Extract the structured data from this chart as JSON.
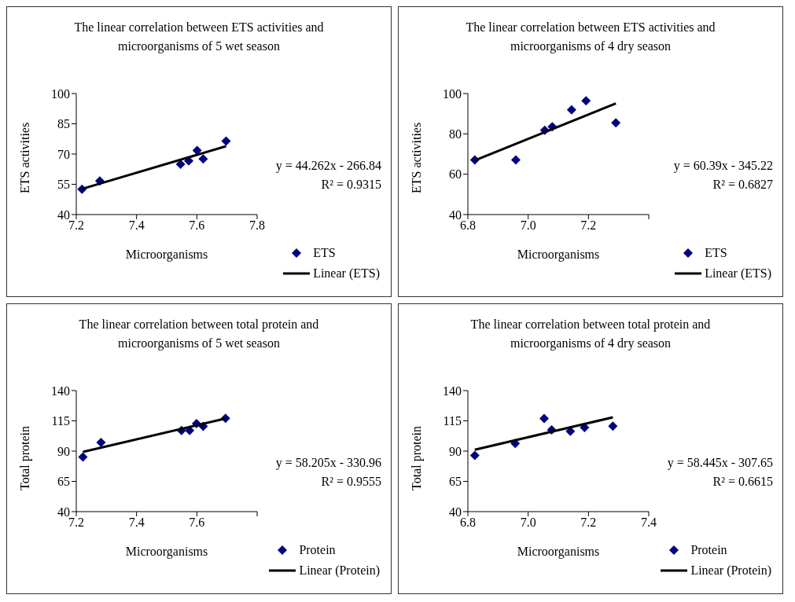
{
  "chart_data": [
    {
      "type": "scatter",
      "title": "The linear correlation between ETS activities and microorganisms of 5 wet season",
      "xlabel": "Microorganisms",
      "ylabel": "ETS activities",
      "xlim": [
        7.2,
        7.8
      ],
      "xticks": [
        7.2,
        7.4,
        7.6,
        7.8
      ],
      "ylim": [
        40,
        100
      ],
      "yticks": [
        40,
        55,
        70,
        85,
        100
      ],
      "legend": "right",
      "annotations": [
        "y = 44.262x - 266.84",
        "R² = 0.9315"
      ],
      "series": [
        {
          "name": "ETS",
          "marker": "diamond",
          "color": "#000080",
          "x": [
            7.219,
            7.278,
            7.546,
            7.573,
            7.601,
            7.621,
            7.697
          ],
          "values": [
            52.6,
            56.7,
            64.9,
            66.6,
            71.8,
            67.6,
            76.4
          ]
        },
        {
          "name": "Linear (ETS)",
          "type": "line",
          "color": "#000000",
          "x": [
            7.219,
            7.697
          ],
          "values": [
            52.7,
            73.9
          ]
        }
      ]
    },
    {
      "type": "scatter",
      "title": "The linear correlation between ETS activities and microorganisms of 4 dry season",
      "xlabel": "Microorganisms",
      "ylabel": "ETS activities",
      "xlim": [
        6.8,
        7.4
      ],
      "xticks": [
        6.8,
        {
          "value": 7,
          "label": "7.0"
        },
        7.2,
        {
          "value": 7.4,
          "label": null
        }
      ],
      "ylim": [
        40,
        100
      ],
      "yticks": [
        40,
        60,
        80,
        100
      ],
      "legend": "right",
      "annotations": [
        "y = 60.39x - 345.22",
        "R² = 0.6827"
      ],
      "series": [
        {
          "name": "ETS",
          "marker": "diamond",
          "color": "#000080",
          "x": [
            6.823,
            6.959,
            7.055,
            7.08,
            7.144,
            7.192,
            7.291
          ],
          "values": [
            67.1,
            67.1,
            81.8,
            83.5,
            91.9,
            96.4,
            85.5
          ]
        },
        {
          "name": "Linear (ETS)",
          "type": "line",
          "color": "#000000",
          "x": [
            6.823,
            7.291
          ],
          "values": [
            66.8,
            95.1
          ]
        }
      ]
    },
    {
      "type": "scatter",
      "title": "The linear correlation between total protein and microorganisms of 5 wet season",
      "xlabel": "Microorganisms",
      "ylabel": "Total protein",
      "xlim": [
        7.2,
        7.8
      ],
      "xticks": [
        7.2,
        7.4,
        7.6,
        {
          "value": 7.8,
          "label": null
        }
      ],
      "ylim": [
        40,
        140
      ],
      "yticks": [
        40,
        65,
        90,
        115,
        140
      ],
      "legend": "right",
      "annotations": [
        "y = 58.205x - 330.96",
        "R² = 0.9555"
      ],
      "series": [
        {
          "name": "Protein",
          "marker": "diamond",
          "color": "#000080",
          "x": [
            7.222,
            7.282,
            7.549,
            7.576,
            7.599,
            7.621,
            7.695
          ],
          "values": [
            85.2,
            97.2,
            107.1,
            107.1,
            112.8,
            110.5,
            117.1
          ]
        },
        {
          "name": "Linear (Protein)",
          "type": "line",
          "color": "#000000",
          "x": [
            7.222,
            7.695
          ],
          "values": [
            89.4,
            116.9
          ]
        }
      ]
    },
    {
      "type": "scatter",
      "title": "The linear correlation between total protein and microorganisms of 4 dry season",
      "xlabel": "Microorganisms",
      "ylabel": "Total protein",
      "xlim": [
        6.8,
        7.4
      ],
      "xticks": [
        6.8,
        {
          "value": 7,
          "label": "7.0"
        },
        7.2,
        7.4
      ],
      "ylim": [
        40,
        140
      ],
      "yticks": [
        40,
        65,
        90,
        115,
        140
      ],
      "legend": "right",
      "annotations": [
        "y = 58.445x - 307.65",
        "R² = 0.6615"
      ],
      "series": [
        {
          "name": "Protein",
          "marker": "diamond",
          "color": "#000080",
          "x": [
            6.823,
            6.957,
            7.053,
            7.078,
            7.14,
            7.187,
            7.281
          ],
          "values": [
            86.4,
            96.3,
            117.0,
            107.6,
            106.4,
            109.4,
            110.6
          ]
        },
        {
          "name": "Linear (Protein)",
          "type": "line",
          "color": "#000000",
          "x": [
            6.823,
            7.281
          ],
          "values": [
            91.1,
            117.9
          ]
        }
      ]
    }
  ]
}
